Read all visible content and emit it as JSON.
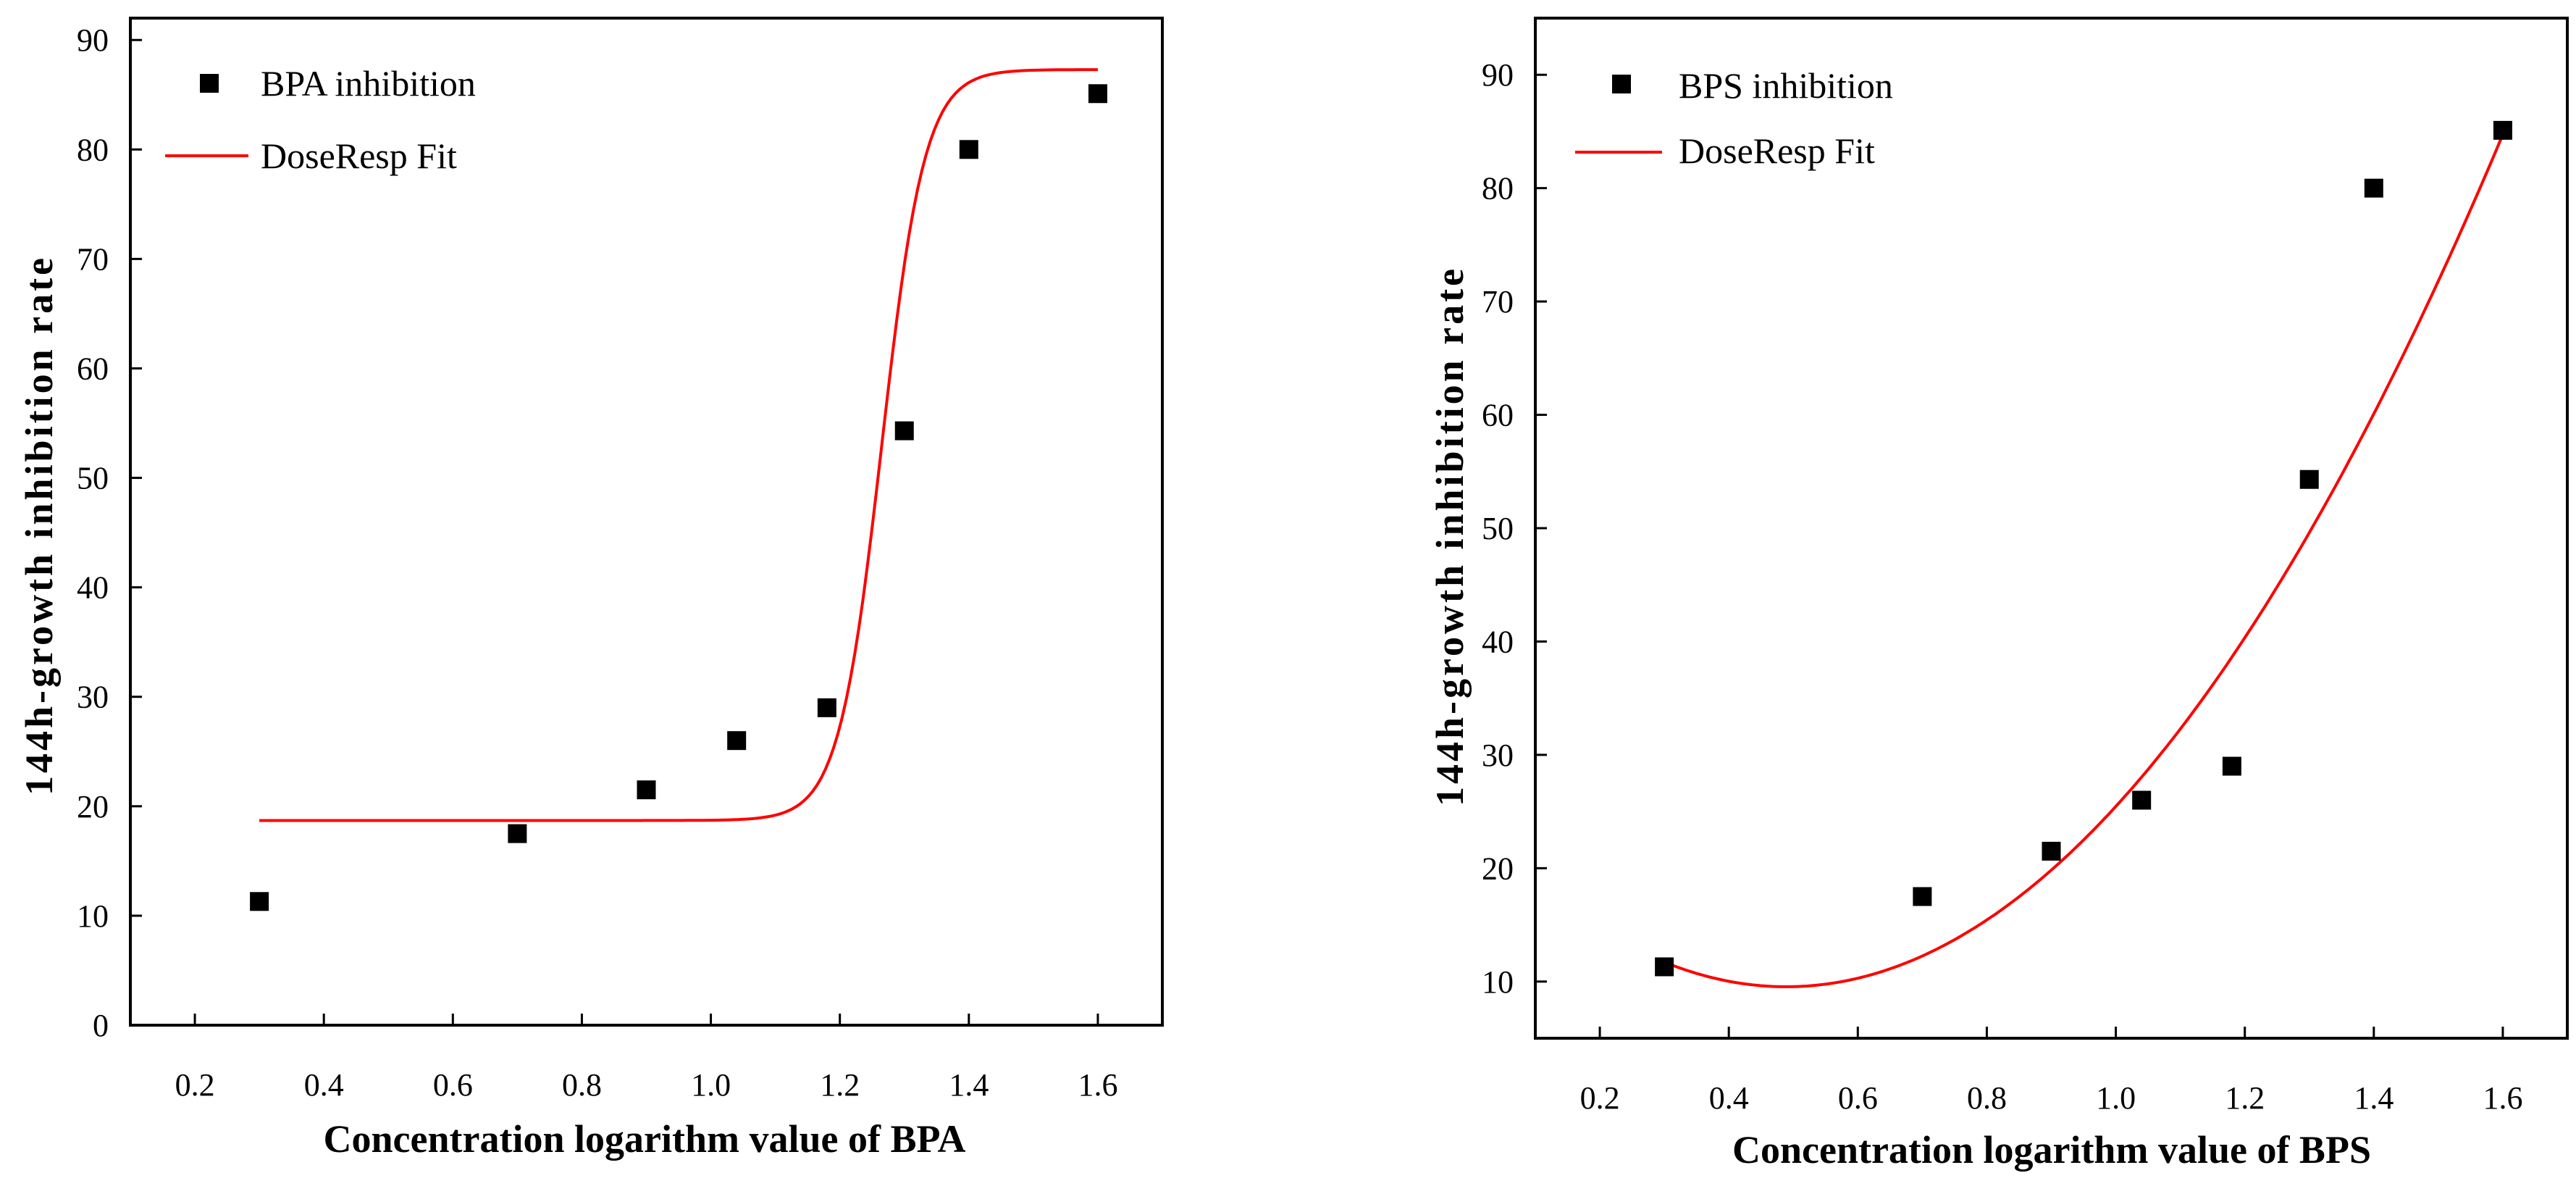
{
  "chart_data": [
    {
      "type": "scatter",
      "title": "",
      "xlabel": "Concentration logarithm value of BPA",
      "ylabel": "144h-growth inhibition rate",
      "xlim": [
        0.1,
        1.7
      ],
      "ylim": [
        0,
        92
      ],
      "xticks": [
        0.2,
        0.4,
        0.6,
        0.8,
        1.0,
        1.2,
        1.4,
        1.6
      ],
      "xtick_labels": [
        "0.2",
        "0.4",
        "0.6",
        "0.8",
        "1.0",
        "1.2",
        "1.4",
        "1.6"
      ],
      "yticks": [
        0,
        10,
        20,
        30,
        40,
        50,
        60,
        70,
        80,
        90
      ],
      "ytick_labels": [
        "0",
        "10",
        "20",
        "30",
        "40",
        "50",
        "60",
        "70",
        "80",
        "90"
      ],
      "legend_position": "top-left",
      "series": [
        {
          "name": "BPA inhibition",
          "kind": "points",
          "color": "#000000",
          "x": [
            0.3,
            0.7,
            0.9,
            1.04,
            1.18,
            1.3,
            1.4,
            1.6
          ],
          "y": [
            11.3,
            17.5,
            21.5,
            26.0,
            29.0,
            54.3,
            80.0,
            85.1
          ]
        },
        {
          "name": "DoseResp Fit",
          "kind": "curve",
          "model": "doseresp",
          "color": "#ff0000",
          "params": {
            "A1": 18.7,
            "A2": 87.3,
            "LOGx0": 1.265,
            "p": 13.0
          },
          "x_range": [
            0.3,
            1.6
          ]
        }
      ]
    },
    {
      "type": "scatter",
      "title": "",
      "xlabel": "Concentration logarithm value of BPS",
      "ylabel": "144h-growth inhibition rate",
      "xlim": [
        0.1,
        1.7
      ],
      "ylim": [
        5,
        95
      ],
      "xticks": [
        0.2,
        0.4,
        0.6,
        0.8,
        1.0,
        1.2,
        1.4,
        1.6
      ],
      "xtick_labels": [
        "0.2",
        "0.4",
        "0.6",
        "0.8",
        "1.0",
        "1.2",
        "1.4",
        "1.6"
      ],
      "yticks": [
        10,
        20,
        30,
        40,
        50,
        60,
        70,
        80,
        90
      ],
      "ytick_labels": [
        "10",
        "20",
        "30",
        "40",
        "50",
        "60",
        "70",
        "80",
        "90"
      ],
      "legend_position": "top-left",
      "series": [
        {
          "name": "BPS inhibition",
          "kind": "points",
          "color": "#000000",
          "x": [
            0.3,
            0.7,
            0.9,
            1.04,
            1.18,
            1.3,
            1.4,
            1.6
          ],
          "y": [
            11.3,
            17.5,
            21.5,
            26.0,
            29.0,
            54.3,
            80.0,
            85.1
          ]
        },
        {
          "name": "DoseResp Fit",
          "kind": "curve",
          "model": "quadratic",
          "color": "#ff0000",
          "coefficients": [
            24.1,
            -59.55,
            60.9
          ],
          "x_range": [
            0.3,
            1.6
          ]
        }
      ]
    }
  ]
}
